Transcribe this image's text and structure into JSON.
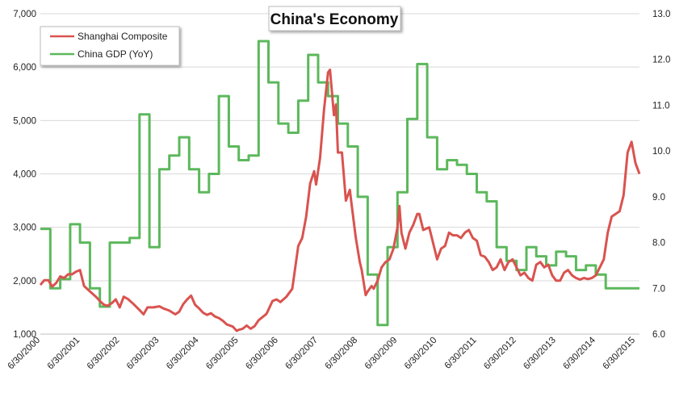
{
  "chart_data": {
    "type": "line",
    "title": "China's Economy",
    "x_tick_labels": [
      "6/30/2000",
      "6/30/2001",
      "6/30/2002",
      "6/30/2003",
      "6/30/2004",
      "6/30/2005",
      "6/30/2006",
      "6/30/2007",
      "6/30/2008",
      "6/30/2009",
      "6/30/2010",
      "6/30/2011",
      "6/30/2012",
      "6/30/2013",
      "6/30/2014",
      "6/30/2015"
    ],
    "y_left": {
      "range": [
        1000,
        7000
      ],
      "ticks": [
        "1,000",
        "2,000",
        "3,000",
        "4,000",
        "5,000",
        "6,000",
        "7,000"
      ]
    },
    "y_right": {
      "range": [
        6.0,
        13.0
      ],
      "ticks": [
        "6.0",
        "7.0",
        "8.0",
        "9.0",
        "10.0",
        "11.0",
        "12.0",
        "13.0"
      ]
    },
    "grid": "horizontal",
    "legend_position": "top-left",
    "series": [
      {
        "name": "Shanghai Composite",
        "axis": "left",
        "color": "#d9534f",
        "points": [
          [
            2000.5,
            1920
          ],
          [
            2000.6,
            2010
          ],
          [
            2000.7,
            2010
          ],
          [
            2000.8,
            1890
          ],
          [
            2000.9,
            1960
          ],
          [
            2001.0,
            2080
          ],
          [
            2001.1,
            2050
          ],
          [
            2001.2,
            2120
          ],
          [
            2001.3,
            2120
          ],
          [
            2001.4,
            2170
          ],
          [
            2001.5,
            2200
          ],
          [
            2001.6,
            1900
          ],
          [
            2001.75,
            1800
          ],
          [
            2001.9,
            1700
          ],
          [
            2002.0,
            1620
          ],
          [
            2002.1,
            1550
          ],
          [
            2002.2,
            1530
          ],
          [
            2002.3,
            1580
          ],
          [
            2002.4,
            1650
          ],
          [
            2002.5,
            1500
          ],
          [
            2002.6,
            1700
          ],
          [
            2002.7,
            1660
          ],
          [
            2002.85,
            1560
          ],
          [
            2003.0,
            1450
          ],
          [
            2003.1,
            1370
          ],
          [
            2003.2,
            1500
          ],
          [
            2003.35,
            1500
          ],
          [
            2003.5,
            1520
          ],
          [
            2003.6,
            1480
          ],
          [
            2003.75,
            1440
          ],
          [
            2003.9,
            1370
          ],
          [
            2004.0,
            1420
          ],
          [
            2004.1,
            1560
          ],
          [
            2004.2,
            1650
          ],
          [
            2004.3,
            1720
          ],
          [
            2004.4,
            1550
          ],
          [
            2004.5,
            1480
          ],
          [
            2004.6,
            1400
          ],
          [
            2004.7,
            1360
          ],
          [
            2004.8,
            1390
          ],
          [
            2004.9,
            1330
          ],
          [
            2005.0,
            1300
          ],
          [
            2005.1,
            1250
          ],
          [
            2005.2,
            1180
          ],
          [
            2005.35,
            1140
          ],
          [
            2005.45,
            1060
          ],
          [
            2005.5,
            1080
          ],
          [
            2005.6,
            1100
          ],
          [
            2005.7,
            1160
          ],
          [
            2005.8,
            1100
          ],
          [
            2005.9,
            1150
          ],
          [
            2006.0,
            1260
          ],
          [
            2006.2,
            1380
          ],
          [
            2006.35,
            1620
          ],
          [
            2006.45,
            1650
          ],
          [
            2006.55,
            1600
          ],
          [
            2006.7,
            1700
          ],
          [
            2006.85,
            1850
          ],
          [
            2007.0,
            2650
          ],
          [
            2007.1,
            2800
          ],
          [
            2007.2,
            3200
          ],
          [
            2007.3,
            3820
          ],
          [
            2007.4,
            4050
          ],
          [
            2007.45,
            3800
          ],
          [
            2007.55,
            4300
          ],
          [
            2007.65,
            5200
          ],
          [
            2007.75,
            5900
          ],
          [
            2007.8,
            5950
          ],
          [
            2007.9,
            5100
          ],
          [
            2007.95,
            5300
          ],
          [
            2008.0,
            4400
          ],
          [
            2008.1,
            4400
          ],
          [
            2008.2,
            3500
          ],
          [
            2008.3,
            3700
          ],
          [
            2008.35,
            3400
          ],
          [
            2008.45,
            2800
          ],
          [
            2008.55,
            2350
          ],
          [
            2008.6,
            2200
          ],
          [
            2008.7,
            1730
          ],
          [
            2008.75,
            1800
          ],
          [
            2008.85,
            1900
          ],
          [
            2008.9,
            1850
          ],
          [
            2009.0,
            2000
          ],
          [
            2009.1,
            2250
          ],
          [
            2009.2,
            2350
          ],
          [
            2009.3,
            2400
          ],
          [
            2009.4,
            2600
          ],
          [
            2009.5,
            3000
          ],
          [
            2009.55,
            3400
          ],
          [
            2009.6,
            2900
          ],
          [
            2009.7,
            2600
          ],
          [
            2009.8,
            2900
          ],
          [
            2009.9,
            3050
          ],
          [
            2010.0,
            3250
          ],
          [
            2010.05,
            3250
          ],
          [
            2010.15,
            2950
          ],
          [
            2010.3,
            3000
          ],
          [
            2010.4,
            2700
          ],
          [
            2010.5,
            2400
          ],
          [
            2010.6,
            2600
          ],
          [
            2010.7,
            2650
          ],
          [
            2010.8,
            2900
          ],
          [
            2010.9,
            2850
          ],
          [
            2011.0,
            2850
          ],
          [
            2011.1,
            2800
          ],
          [
            2011.2,
            2900
          ],
          [
            2011.3,
            2950
          ],
          [
            2011.4,
            2800
          ],
          [
            2011.5,
            2750
          ],
          [
            2011.6,
            2480
          ],
          [
            2011.7,
            2450
          ],
          [
            2011.8,
            2350
          ],
          [
            2011.9,
            2200
          ],
          [
            2012.0,
            2250
          ],
          [
            2012.1,
            2400
          ],
          [
            2012.2,
            2200
          ],
          [
            2012.3,
            2350
          ],
          [
            2012.4,
            2400
          ],
          [
            2012.5,
            2250
          ],
          [
            2012.6,
            2100
          ],
          [
            2012.7,
            2150
          ],
          [
            2012.8,
            2050
          ],
          [
            2012.9,
            2000
          ],
          [
            2013.0,
            2300
          ],
          [
            2013.1,
            2350
          ],
          [
            2013.2,
            2250
          ],
          [
            2013.3,
            2300
          ],
          [
            2013.4,
            2100
          ],
          [
            2013.5,
            2000
          ],
          [
            2013.6,
            2000
          ],
          [
            2013.7,
            2150
          ],
          [
            2013.8,
            2200
          ],
          [
            2013.9,
            2100
          ],
          [
            2014.0,
            2050
          ],
          [
            2014.1,
            2020
          ],
          [
            2014.2,
            2050
          ],
          [
            2014.3,
            2030
          ],
          [
            2014.4,
            2050
          ],
          [
            2014.5,
            2100
          ],
          [
            2014.6,
            2250
          ],
          [
            2014.7,
            2400
          ],
          [
            2014.8,
            2900
          ],
          [
            2014.9,
            3200
          ],
          [
            2015.0,
            3250
          ],
          [
            2015.1,
            3300
          ],
          [
            2015.2,
            3600
          ],
          [
            2015.3,
            4400
          ],
          [
            2015.4,
            4600
          ],
          [
            2015.5,
            4200
          ],
          [
            2015.6,
            4000
          ]
        ]
      },
      {
        "name": "China GDP (YoY)",
        "axis": "right",
        "color": "#5cb85c",
        "points": [
          [
            2000.5,
            8.3
          ],
          [
            2000.75,
            8.3
          ],
          [
            2000.75,
            7.0
          ],
          [
            2001.0,
            7.0
          ],
          [
            2001.0,
            7.2
          ],
          [
            2001.25,
            7.2
          ],
          [
            2001.25,
            8.4
          ],
          [
            2001.5,
            8.4
          ],
          [
            2001.5,
            8.0
          ],
          [
            2001.75,
            8.0
          ],
          [
            2001.75,
            7.0
          ],
          [
            2002.0,
            7.0
          ],
          [
            2002.0,
            6.6
          ],
          [
            2002.25,
            6.6
          ],
          [
            2002.25,
            8.0
          ],
          [
            2002.5,
            8.0
          ],
          [
            2002.5,
            8.0
          ],
          [
            2002.75,
            8.0
          ],
          [
            2002.75,
            8.1
          ],
          [
            2003.0,
            8.1
          ],
          [
            2003.0,
            10.8
          ],
          [
            2003.25,
            10.8
          ],
          [
            2003.25,
            7.9
          ],
          [
            2003.5,
            7.9
          ],
          [
            2003.5,
            9.6
          ],
          [
            2003.75,
            9.6
          ],
          [
            2003.75,
            9.9
          ],
          [
            2004.0,
            9.9
          ],
          [
            2004.0,
            10.3
          ],
          [
            2004.25,
            10.3
          ],
          [
            2004.25,
            9.6
          ],
          [
            2004.5,
            9.6
          ],
          [
            2004.5,
            9.1
          ],
          [
            2004.75,
            9.1
          ],
          [
            2004.75,
            9.5
          ],
          [
            2005.0,
            9.5
          ],
          [
            2005.0,
            11.2
          ],
          [
            2005.25,
            11.2
          ],
          [
            2005.25,
            10.1
          ],
          [
            2005.5,
            10.1
          ],
          [
            2005.5,
            9.8
          ],
          [
            2005.75,
            9.8
          ],
          [
            2005.75,
            9.9
          ],
          [
            2006.0,
            9.9
          ],
          [
            2006.0,
            12.4
          ],
          [
            2006.25,
            12.4
          ],
          [
            2006.25,
            11.5
          ],
          [
            2006.5,
            11.5
          ],
          [
            2006.5,
            10.6
          ],
          [
            2006.75,
            10.6
          ],
          [
            2006.75,
            10.4
          ],
          [
            2007.0,
            10.4
          ],
          [
            2007.0,
            11.1
          ],
          [
            2007.25,
            11.1
          ],
          [
            2007.25,
            12.1
          ],
          [
            2007.5,
            12.1
          ],
          [
            2007.5,
            11.5
          ],
          [
            2007.75,
            11.5
          ],
          [
            2007.75,
            11.2
          ],
          [
            2008.0,
            11.2
          ],
          [
            2008.0,
            10.6
          ],
          [
            2008.25,
            10.6
          ],
          [
            2008.25,
            10.1
          ],
          [
            2008.5,
            10.1
          ],
          [
            2008.5,
            9.0
          ],
          [
            2008.75,
            9.0
          ],
          [
            2008.75,
            7.3
          ],
          [
            2009.0,
            7.3
          ],
          [
            2009.0,
            6.2
          ],
          [
            2009.25,
            6.2
          ],
          [
            2009.25,
            7.9
          ],
          [
            2009.5,
            7.9
          ],
          [
            2009.5,
            9.1
          ],
          [
            2009.75,
            9.1
          ],
          [
            2009.75,
            10.7
          ],
          [
            2010.0,
            10.7
          ],
          [
            2010.0,
            11.9
          ],
          [
            2010.25,
            11.9
          ],
          [
            2010.25,
            10.3
          ],
          [
            2010.5,
            10.3
          ],
          [
            2010.5,
            9.6
          ],
          [
            2010.75,
            9.6
          ],
          [
            2010.75,
            9.8
          ],
          [
            2011.0,
            9.8
          ],
          [
            2011.0,
            9.7
          ],
          [
            2011.25,
            9.7
          ],
          [
            2011.25,
            9.5
          ],
          [
            2011.5,
            9.5
          ],
          [
            2011.5,
            9.1
          ],
          [
            2011.75,
            9.1
          ],
          [
            2011.75,
            8.9
          ],
          [
            2012.0,
            8.9
          ],
          [
            2012.0,
            7.9
          ],
          [
            2012.25,
            7.9
          ],
          [
            2012.25,
            7.6
          ],
          [
            2012.5,
            7.6
          ],
          [
            2012.5,
            7.4
          ],
          [
            2012.75,
            7.4
          ],
          [
            2012.75,
            7.9
          ],
          [
            2013.0,
            7.9
          ],
          [
            2013.0,
            7.7
          ],
          [
            2013.25,
            7.7
          ],
          [
            2013.25,
            7.5
          ],
          [
            2013.5,
            7.5
          ],
          [
            2013.5,
            7.8
          ],
          [
            2013.75,
            7.8
          ],
          [
            2013.75,
            7.7
          ],
          [
            2014.0,
            7.7
          ],
          [
            2014.0,
            7.4
          ],
          [
            2014.25,
            7.4
          ],
          [
            2014.25,
            7.5
          ],
          [
            2014.5,
            7.5
          ],
          [
            2014.5,
            7.3
          ],
          [
            2014.75,
            7.3
          ],
          [
            2014.75,
            7.0
          ],
          [
            2015.0,
            7.0
          ],
          [
            2015.0,
            7.0
          ],
          [
            2015.6,
            7.0
          ]
        ]
      }
    ]
  }
}
